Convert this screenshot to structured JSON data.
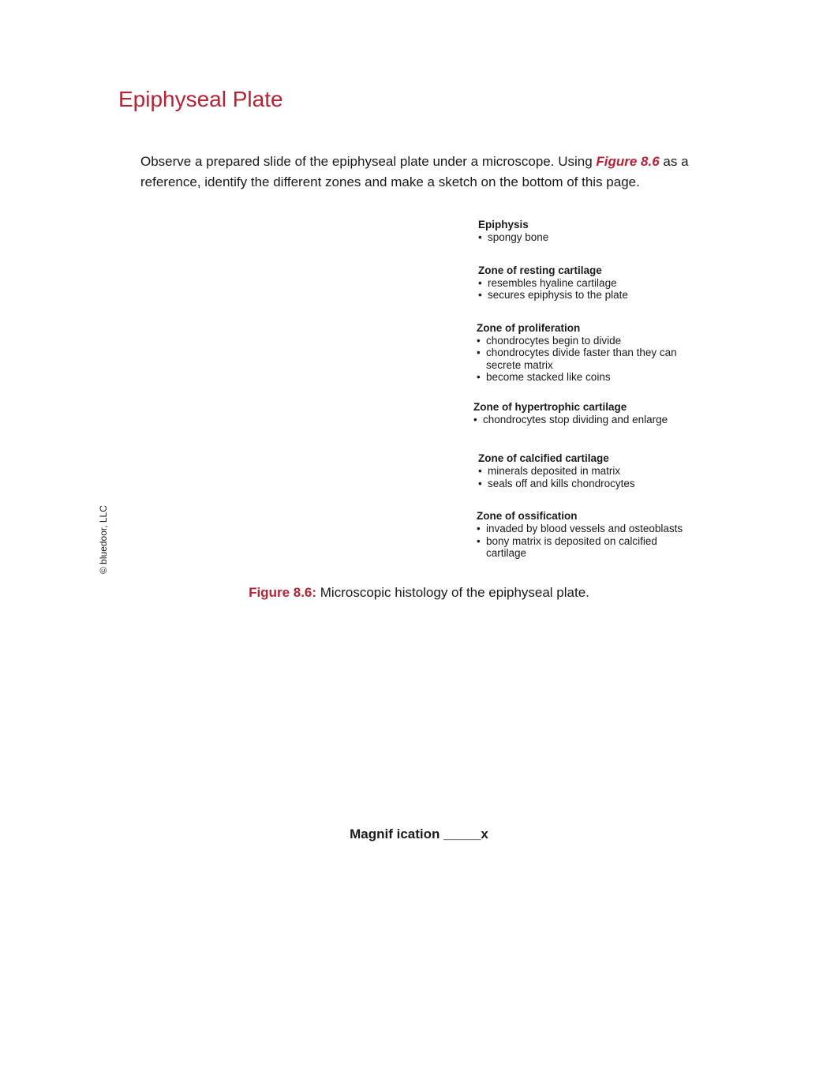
{
  "title": "Epiphyseal Plate",
  "intro": {
    "part1": "Observe a prepared slide of the epiphyseal plate under a microscope. Using ",
    "figref": "Figure 8.6",
    "part2": " as a reference, identify the different zones and make a sketch on the bottom of this page."
  },
  "copyright": "© bluedoor, LLC",
  "zones": [
    {
      "title": "Epiphysis",
      "bullets": [
        "spongy bone"
      ]
    },
    {
      "title": "Zone of resting cartilage",
      "bullets": [
        "resembles hyaline cartilage",
        "secures epiphysis to the plate"
      ]
    },
    {
      "title": "Zone of proliferation",
      "bullets": [
        "chondrocytes begin to divide",
        "chondrocytes divide faster than they can secrete matrix",
        "become stacked like coins"
      ]
    },
    {
      "title": "Zone of hypertrophic cartilage",
      "bullets": [
        "chondrocytes stop dividing and enlarge"
      ]
    },
    {
      "title": "Zone of calcified cartilage",
      "bullets": [
        "minerals deposited in matrix",
        "seals off and kills chondrocytes"
      ]
    },
    {
      "title": "Zone of ossification",
      "bullets": [
        "invaded by blood vessels and osteoblasts",
        "bony matrix is deposited on calcified cartilage"
      ]
    }
  ],
  "caption": {
    "label": "Figure 8.6:",
    "text": " Microscopic histology of the epiphyseal plate."
  },
  "magnification": "Magnif ication _____x",
  "styling": {
    "accent_color": "#b32436",
    "text_color": "#1a1a1a",
    "background": "#ffffff",
    "title_fontsize": 28,
    "body_fontsize": 17,
    "label_fontsize": 13.5
  },
  "zone_spacing": [
    26,
    26,
    22,
    34,
    26,
    26
  ],
  "zone_left_offsets": [
    0,
    0,
    -2,
    -6,
    0,
    -2
  ]
}
